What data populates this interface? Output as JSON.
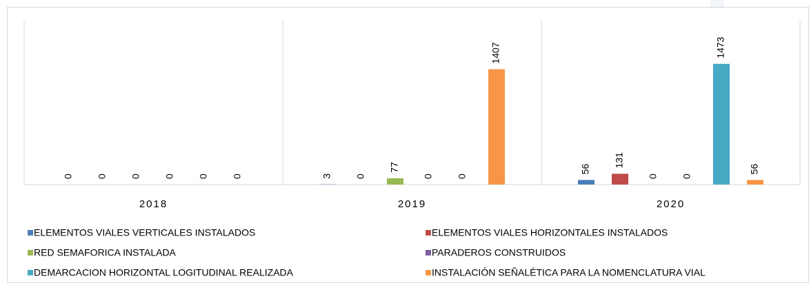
{
  "chart_data": {
    "type": "bar",
    "categories": [
      "2018",
      "2019",
      "2020"
    ],
    "series": [
      {
        "name": "ELEMENTOS VIALES VERTICALES INSTALADOS",
        "color": "#4a7ebb",
        "values": [
          0,
          3,
          56
        ]
      },
      {
        "name": "ELEMENTOS VIALES HORIZONTALES INSTALADOS",
        "color": "#be4b48",
        "values": [
          0,
          0,
          131
        ]
      },
      {
        "name": "RED SEMAFORICA INSTALADA",
        "color": "#98b954",
        "values": [
          0,
          77,
          0
        ]
      },
      {
        "name": "PARADEROS CONSTRUIDOS",
        "color": "#7d60a0",
        "values": [
          0,
          0,
          0
        ]
      },
      {
        "name": "DEMARCACION HORIZONTAL LOGITUDINAL REALIZADA",
        "color": "#46aac5",
        "values": [
          0,
          0,
          1473
        ]
      },
      {
        "name": "INSTALACIÓN SEÑALÉTICA PARA LA NOMENCLATURA VIAL",
        "color": "#f79646",
        "values": [
          0,
          1407,
          56
        ]
      }
    ],
    "ylim": [
      0,
      2000
    ]
  }
}
